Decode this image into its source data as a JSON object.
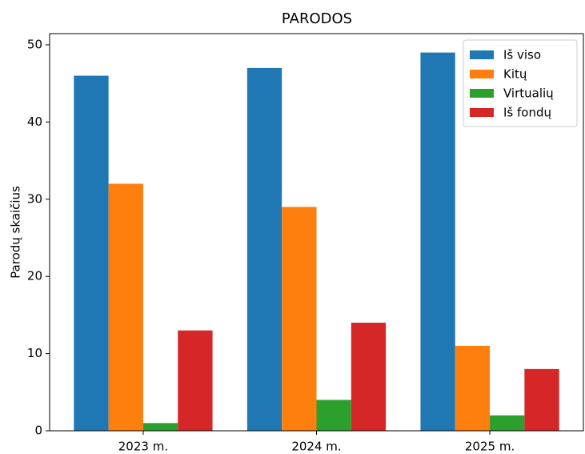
{
  "chart_data": {
    "type": "bar",
    "title": "PARODOS",
    "ylabel": "Parodų skaičius",
    "categories": [
      "2023 m.",
      "2024 m.",
      "2025 m."
    ],
    "series": [
      {
        "name": "Iš viso",
        "color": "#1f77b4",
        "values": [
          46,
          47,
          49
        ]
      },
      {
        "name": "Kitų",
        "color": "#ff7f0e",
        "values": [
          32,
          29,
          11
        ]
      },
      {
        "name": "Virtualių",
        "color": "#2ca02c",
        "values": [
          1,
          4,
          2
        ]
      },
      {
        "name": "Iš fondų",
        "color": "#d62728",
        "values": [
          13,
          14,
          8
        ]
      }
    ],
    "ylim": [
      0,
      51.45
    ],
    "yticks": [
      0,
      10,
      20,
      30,
      40,
      50
    ],
    "grid": false,
    "legend": "upper right"
  }
}
